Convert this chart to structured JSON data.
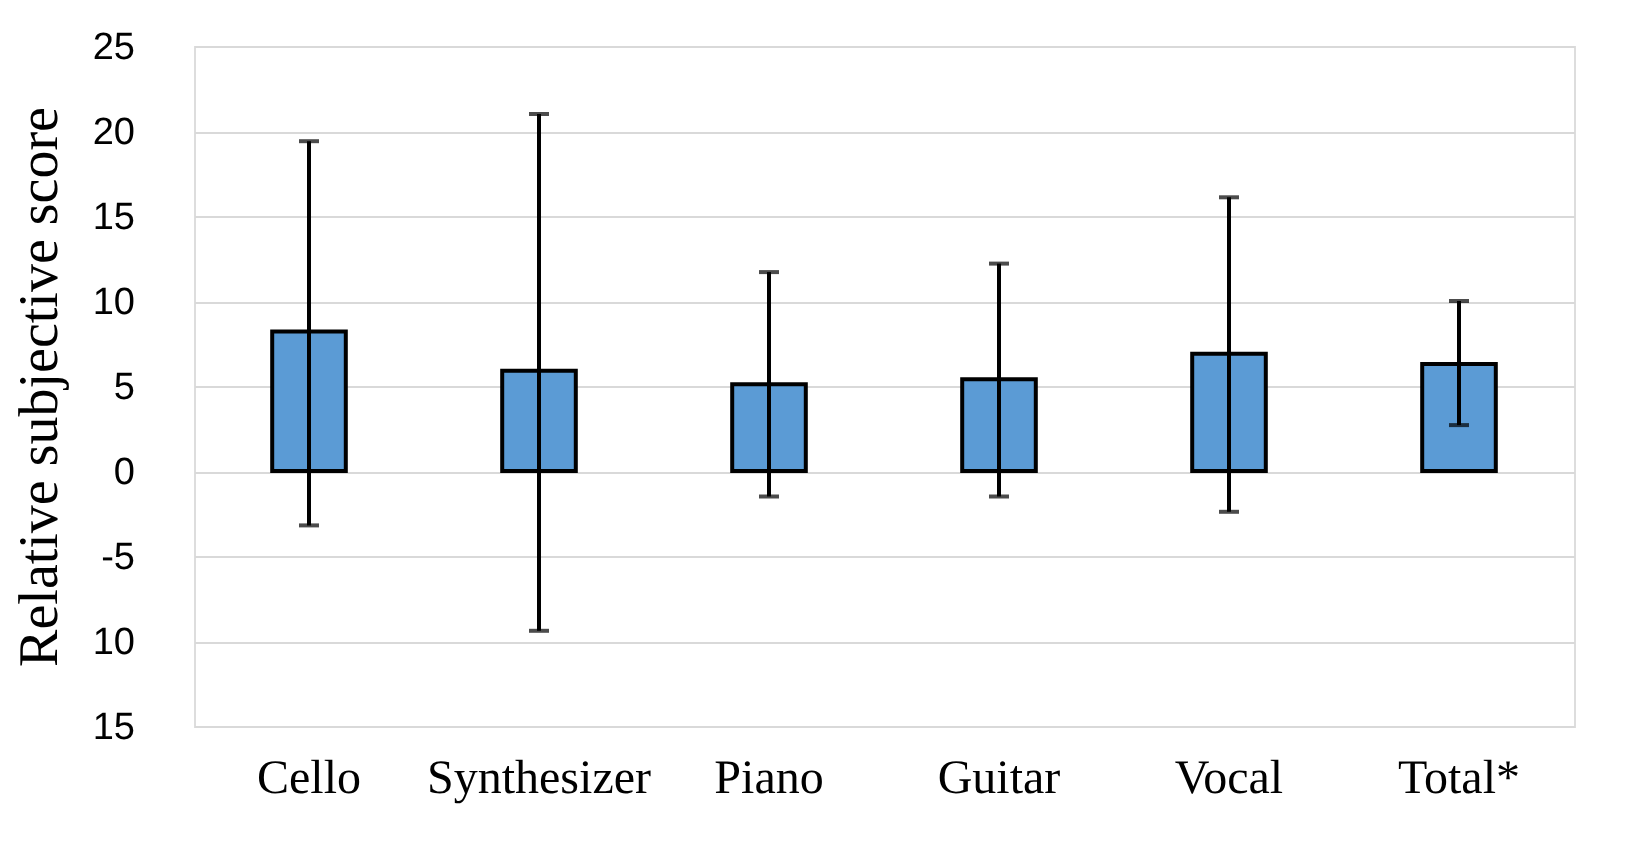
{
  "chart_data": {
    "type": "bar",
    "ylabel": "Relative subjective score",
    "categories": [
      "Cello",
      "Synthesizer",
      "Piano",
      "Guitar",
      "Vocal",
      "Total*"
    ],
    "values": [
      8.2,
      5.9,
      5.1,
      5.4,
      6.9,
      6.3
    ],
    "errors": [
      [
        -3.2,
        19.4
      ],
      [
        -9.4,
        21.0
      ],
      [
        -1.5,
        11.7
      ],
      [
        -1.5,
        12.2
      ],
      [
        -2.4,
        16.1
      ],
      [
        2.7,
        10.0
      ]
    ],
    "color": "#5b9bd5",
    "ylim": [
      -15,
      25
    ],
    "yticks": [
      25,
      20,
      15,
      10,
      5,
      0,
      -5,
      {
        "value": -10,
        "label": "10"
      },
      {
        "value": -15,
        "label": "15"
      }
    ],
    "grid": "y"
  }
}
